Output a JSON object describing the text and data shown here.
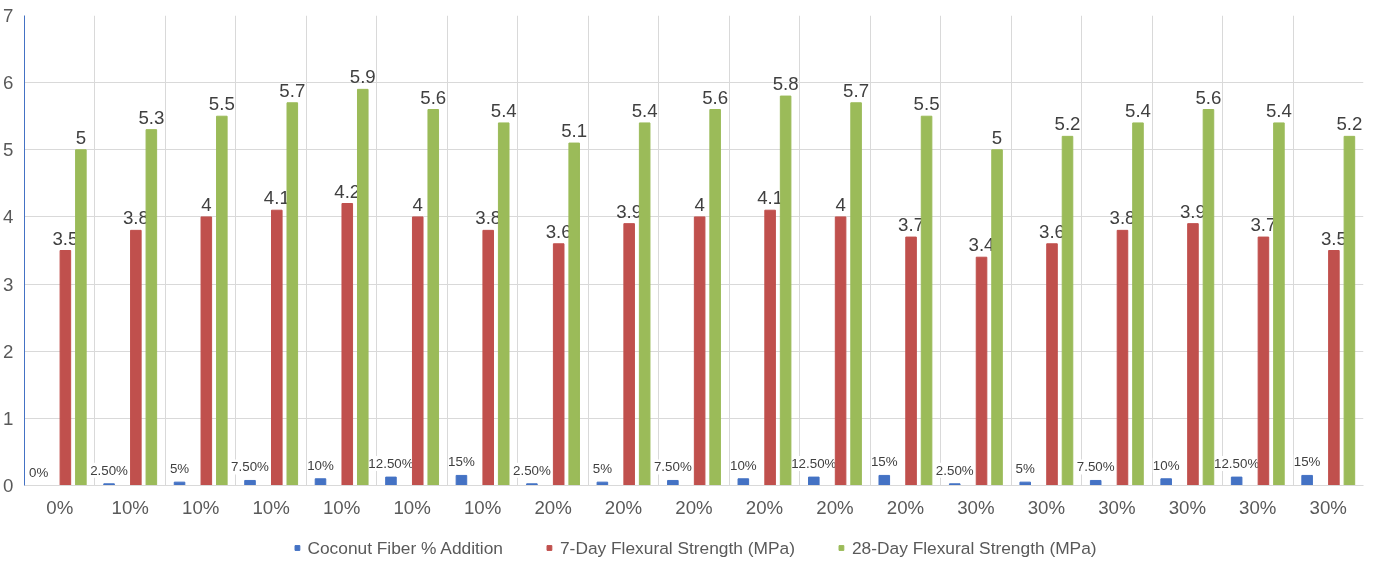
{
  "chart_data": {
    "type": "bar",
    "categories": [
      "0%",
      "10%",
      "10%",
      "10%",
      "10%",
      "10%",
      "10%",
      "20%",
      "20%",
      "20%",
      "20%",
      "20%",
      "20%",
      "30%",
      "30%",
      "30%",
      "30%",
      "30%",
      "30%"
    ],
    "series": [
      {
        "name": "Coconut Fiber % Addition",
        "color": "#4472c4",
        "values": [
          0,
          0.025,
          0.05,
          0.075,
          0.1,
          0.125,
          0.15,
          0.025,
          0.05,
          0.075,
          0.1,
          0.125,
          0.15,
          0.025,
          0.05,
          0.075,
          0.1,
          0.125,
          0.15
        ],
        "value_labels": [
          "0%",
          "2.50%",
          "5%",
          "7.50%",
          "10%",
          "12.50%",
          "15%",
          "2.50%",
          "5%",
          "7.50%",
          "10%",
          "12.50%",
          "15%",
          "2.50%",
          "5%",
          "7.50%",
          "10%",
          "12.50%",
          "15%"
        ]
      },
      {
        "name": "7-Day Flexural Strength (MPa)",
        "color": "#c0504d",
        "values": [
          3.5,
          3.8,
          4,
          4.1,
          4.2,
          4,
          3.8,
          3.6,
          3.9,
          4,
          4.1,
          4,
          3.7,
          3.4,
          3.6,
          3.8,
          3.9,
          3.7,
          3.5
        ],
        "value_labels": [
          "3.5",
          "3.8",
          "4",
          "4.1",
          "4.2",
          "4",
          "3.8",
          "3.6",
          "3.9",
          "4",
          "4.1",
          "4",
          "3.7",
          "3.4",
          "3.6",
          "3.8",
          "3.9",
          "3.7",
          "3.5"
        ]
      },
      {
        "name": "28-Day Flexural Strength (MPa)",
        "color": "#9bbb59",
        "values": [
          5,
          5.3,
          5.5,
          5.7,
          5.9,
          5.6,
          5.4,
          5.1,
          5.4,
          5.6,
          5.8,
          5.7,
          5.5,
          5,
          5.2,
          5.4,
          5.6,
          5.4,
          5.2
        ],
        "value_labels": [
          "5",
          "5.3",
          "5.5",
          "5.7",
          "5.9",
          "5.6",
          "5.4",
          "5.1",
          "5.4",
          "5.6",
          "5.8",
          "5.7",
          "5.5",
          "5",
          "5.2",
          "5.4",
          "5.6",
          "5.4",
          "5.2"
        ]
      }
    ],
    "ylim": [
      0,
      7
    ],
    "yticks": [
      0,
      1,
      2,
      3,
      4,
      5,
      6,
      7
    ],
    "grid": true,
    "legend": "bottom"
  }
}
